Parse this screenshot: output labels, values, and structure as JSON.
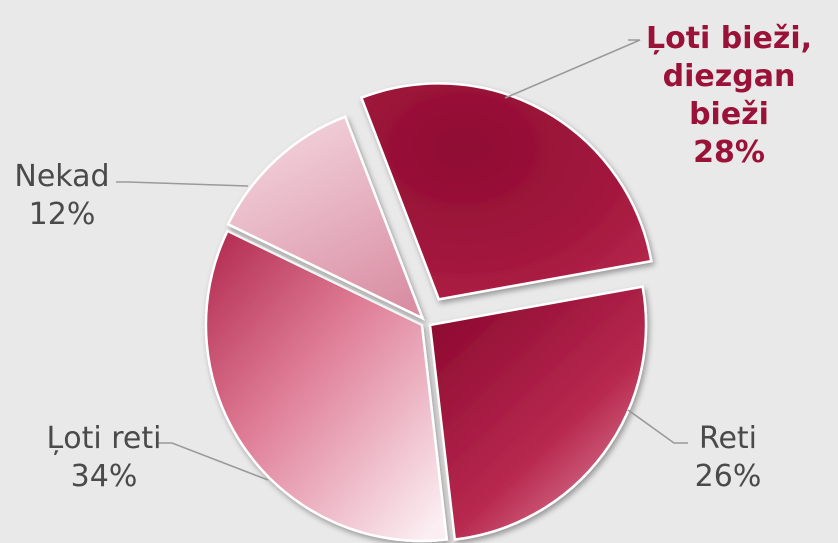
{
  "chart_data": {
    "type": "pie",
    "title": "",
    "slices": [
      {
        "label": "Ļoti bieži, diezgan bieži",
        "label_lines": [
          "Ļoti bieži,",
          "diezgan",
          "bieži"
        ],
        "value": 28,
        "value_text": "28%",
        "exploded": true,
        "highlight": true,
        "color": "#a3173d"
      },
      {
        "label": "Reti",
        "label_lines": [
          "Reti"
        ],
        "value": 26,
        "value_text": "26%",
        "exploded": false,
        "highlight": false,
        "color": "#b02248"
      },
      {
        "label": "Ļoti reti",
        "label_lines": [
          "Ļoti reti"
        ],
        "value": 34,
        "value_text": "34%",
        "exploded": false,
        "highlight": false,
        "color": "#e07a95"
      },
      {
        "label": "Nekad",
        "label_lines": [
          "Nekad"
        ],
        "value": 12,
        "value_text": "12%",
        "exploded": false,
        "highlight": false,
        "color": "#ecc1cd"
      }
    ],
    "legend": "none",
    "colors": {
      "background": "#e9e9e9",
      "highlight_text": "#9b1239",
      "label_text": "#4a4a4a",
      "leader": "#9a9a9a"
    }
  }
}
